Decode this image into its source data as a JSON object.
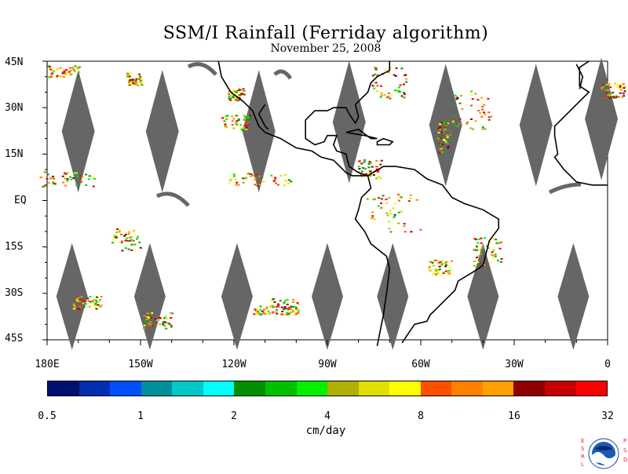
{
  "title": "SSM/I Rainfall (Ferriday algorithm)",
  "subtitle": "November 25, 2008",
  "latitude_labels": [
    "45N",
    "30N",
    "15N",
    "EQ",
    "15S",
    "30S",
    "45S"
  ],
  "longitude_labels": [
    "180E",
    "150W",
    "120W",
    "90W",
    "60W",
    "30W",
    "0"
  ],
  "colorbar": {
    "colors": [
      "#001070",
      "#0030b0",
      "#0050ff",
      "#00909a",
      "#00c8c8",
      "#00ffff",
      "#009000",
      "#00c000",
      "#00f000",
      "#b0b000",
      "#e0e000",
      "#ffff00",
      "#ff5000",
      "#ff8000",
      "#ffa000",
      "#900000",
      "#c80000",
      "#ff0000"
    ],
    "tick_labels": [
      "0.5",
      "1",
      "2",
      "4",
      "8",
      "16",
      "32"
    ],
    "units": "cm/day"
  },
  "logo": {
    "name": "noaa-esrl-psd-logo",
    "left_text": "ESRL",
    "right_text": "PSD"
  }
}
